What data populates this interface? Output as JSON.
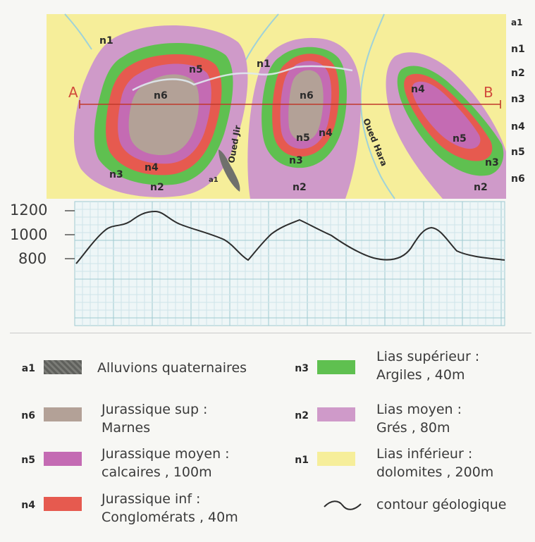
{
  "map": {
    "points": {
      "start": "A",
      "end": "B"
    },
    "rivers": [
      "Oued Jir",
      "Oued Hara"
    ],
    "outcrops": [
      "n1",
      "n1",
      "n5",
      "n6",
      "n4",
      "n3",
      "n2",
      "n6",
      "n5",
      "n4",
      "n3",
      "n2",
      "n4",
      "n5",
      "n3",
      "n2"
    ],
    "alluvium_label": "a1",
    "side_codes": [
      "a1",
      "n1",
      "n2",
      "n3",
      "n4",
      "n5",
      "n6"
    ]
  },
  "profile": {
    "y_ticks": [
      "1200",
      "1000",
      "800"
    ]
  },
  "colors": {
    "a1": "#6f706c",
    "n6": "#b3a197",
    "n5": "#c46bb3",
    "n4": "#e65a4f",
    "n3": "#5fc050",
    "n2": "#cf9ac9",
    "n1": "#f6ee9a",
    "section_line": "#c0392b"
  },
  "legend": [
    {
      "code": "a1",
      "color": "#6f706c",
      "lines": [
        "Alluvions quaternaires"
      ]
    },
    {
      "code": "n6",
      "color": "#b3a197",
      "lines": [
        "Jurassique sup :",
        "Marnes"
      ]
    },
    {
      "code": "n5",
      "color": "#c46bb3",
      "lines": [
        "Jurassique moyen :",
        "calcaires , 100m"
      ]
    },
    {
      "code": "n4",
      "color": "#e65a4f",
      "lines": [
        "Jurassique inf :",
        "Conglomérats , 40m"
      ]
    },
    {
      "code": "n3",
      "color": "#5fc050",
      "lines": [
        "Lias supérieur :",
        "Argiles , 40m"
      ]
    },
    {
      "code": "n2",
      "color": "#cf9ac9",
      "lines": [
        "Lias moyen :",
        "Grés , 80m"
      ]
    },
    {
      "code": "n1",
      "color": "#f6ee9a",
      "lines": [
        "Lias inférieur :",
        "dolomites , 200m"
      ]
    },
    {
      "code": "",
      "color": "",
      "lines": [
        "contour géologique"
      ]
    }
  ]
}
